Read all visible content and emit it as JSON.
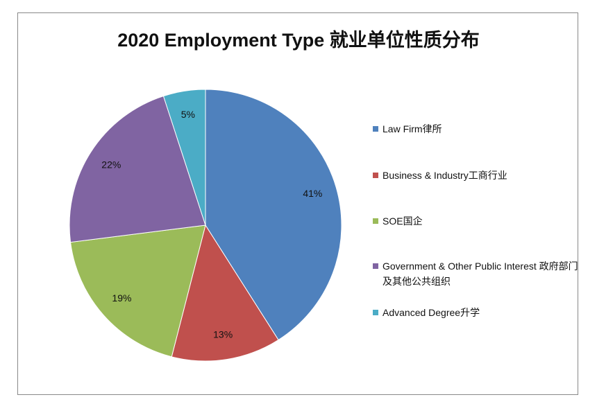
{
  "chart_data": {
    "type": "pie",
    "title": "2020 Employment Type 就业单位性质分布",
    "categories": [
      "Law Firm律所",
      "Business & Industry工商行业",
      "SOE国企",
      "Government & Other Public Interest 政府部门及其他公共组织",
      "Advanced Degree升学"
    ],
    "values": [
      41,
      13,
      19,
      22,
      5
    ],
    "value_labels": [
      "41%",
      "13%",
      "19%",
      "22%",
      "5%"
    ],
    "colors": [
      "#4f81bd",
      "#c0504d",
      "#9bbb59",
      "#8064a2",
      "#4bacc6"
    ],
    "legend": "right"
  }
}
